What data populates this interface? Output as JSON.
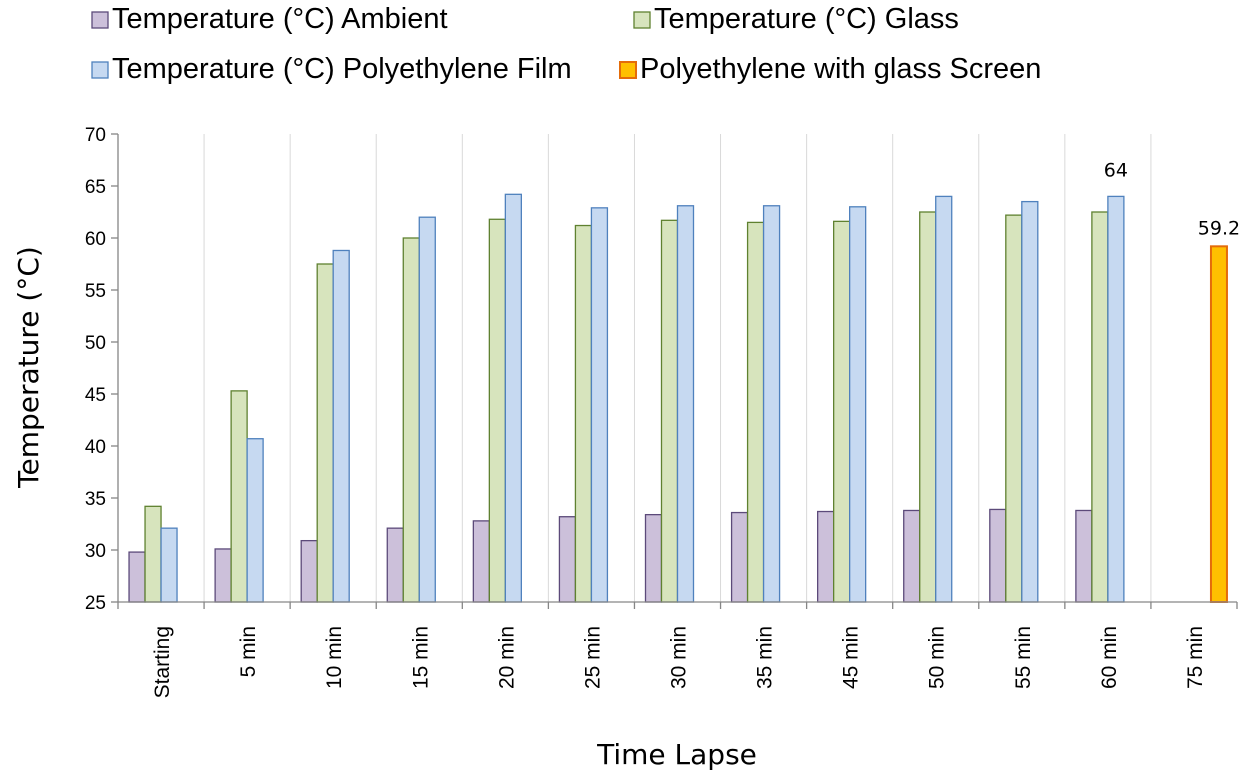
{
  "chart_data": {
    "type": "bar",
    "title": "",
    "xlabel": "Time Lapse",
    "ylabel": "Temperature (°C)",
    "ylim": [
      25,
      70
    ],
    "yticks": [
      25,
      30,
      35,
      40,
      45,
      50,
      55,
      60,
      65,
      70
    ],
    "grid": "vertical category separators",
    "legend_position": "top",
    "categories": [
      "Starting",
      "5 min",
      "10 min",
      "15 min",
      "20 min",
      "25 min",
      "30 min",
      "35 min",
      "45 min",
      "50 min",
      "55 min",
      "60 min",
      "75 min"
    ],
    "series": [
      {
        "name": "Temperature (°C) Ambient",
        "fill": "#ccc0da",
        "stroke": "#5c4a7a",
        "values": [
          29.8,
          30.1,
          30.9,
          32.1,
          32.8,
          33.2,
          33.4,
          33.6,
          33.7,
          33.8,
          33.9,
          33.8,
          null
        ]
      },
      {
        "name": "Temperature (°C) Glass",
        "fill": "#d7e4bd",
        "stroke": "#5f8130",
        "values": [
          34.2,
          45.3,
          57.5,
          60.0,
          61.8,
          61.2,
          61.7,
          61.5,
          61.6,
          62.5,
          62.2,
          62.5,
          null
        ]
      },
      {
        "name": "Temperature (°C) Polyethylene Film",
        "fill": "#c6d9f1",
        "stroke": "#4f81bd",
        "values": [
          32.1,
          40.7,
          58.8,
          62.0,
          64.2,
          62.9,
          63.1,
          63.1,
          63.0,
          64.0,
          63.5,
          64.0,
          null
        ]
      },
      {
        "name": "Polyethylene with glass Screen",
        "fill": "#ffc000",
        "stroke": "#e46c0a",
        "values": [
          null,
          null,
          null,
          null,
          null,
          null,
          null,
          null,
          null,
          null,
          null,
          null,
          59.2
        ]
      }
    ],
    "data_labels": [
      {
        "series": 2,
        "category": "60 min",
        "text": "64"
      },
      {
        "series": 3,
        "category": "75 min",
        "text": "59.2"
      }
    ]
  }
}
